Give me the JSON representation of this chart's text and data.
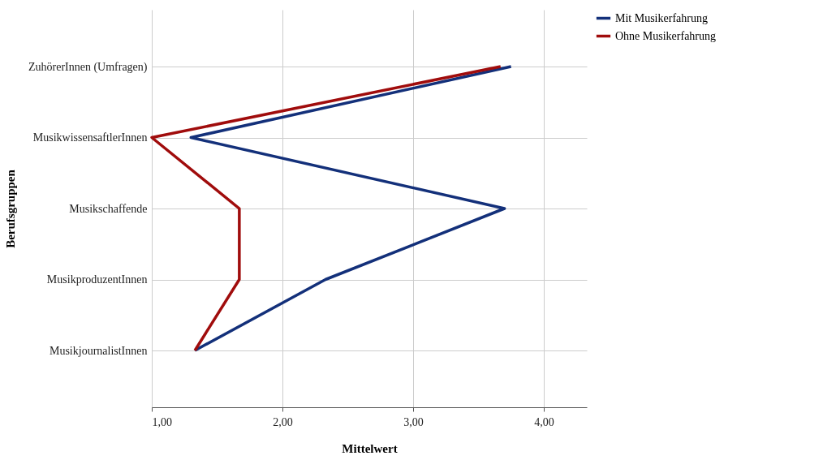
{
  "chart_data": {
    "type": "line",
    "orientation": "horizontal",
    "xlabel": "Mittelwert",
    "ylabel": "Berufsgruppen",
    "categories": [
      "ZuhörerInnen (Umfragen)",
      "MusikwissensaftlerInnen",
      "Musikschaffende",
      "MusikproduzentInnen",
      "MusikjournalistInnen"
    ],
    "series": [
      {
        "name": "Mit Musikerfahrung",
        "color": "#13307a",
        "values": [
          3.75,
          1.3,
          3.7,
          2.33,
          1.33
        ]
      },
      {
        "name": "Ohne Musikerfahrung",
        "color": "#a00c0c",
        "values": [
          3.67,
          1.0,
          1.67,
          1.67,
          1.33
        ]
      }
    ],
    "xlim": [
      1,
      4.33
    ],
    "xticks": [
      {
        "value": 1,
        "label": "1,00"
      },
      {
        "value": 2,
        "label": "2,00"
      },
      {
        "value": 3,
        "label": "3,00"
      },
      {
        "value": 4,
        "label": "4,00"
      }
    ],
    "grid": true,
    "legend": "top right",
    "marker": "none",
    "line_style": "solid"
  }
}
